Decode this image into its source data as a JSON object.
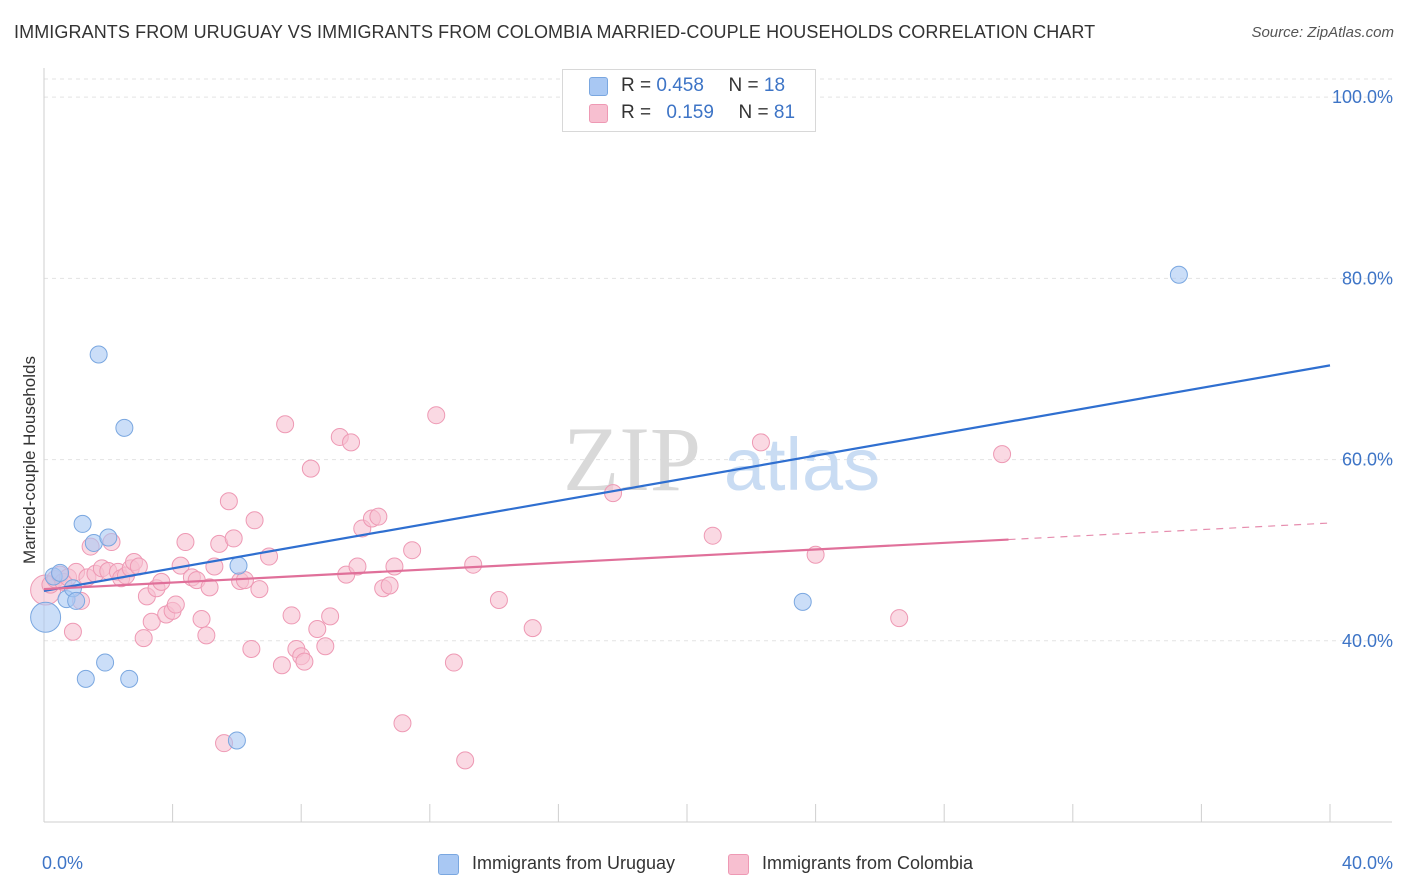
{
  "title": "IMMIGRANTS FROM URUGUAY VS IMMIGRANTS FROM COLOMBIA MARRIED-COUPLE HOUSEHOLDS CORRELATION CHART",
  "source": "Source: ZipAtlas.com",
  "watermark": {
    "zip": "ZIP",
    "atlas": "atlas"
  },
  "legend_top": [
    {
      "r_label": "R =",
      "r_value": "0.458",
      "n_label": "N =",
      "n_value": "18"
    },
    {
      "r_label": "R =",
      "r_value": "0.159",
      "n_label": "N =",
      "n_value": "81"
    }
  ],
  "chart_data": {
    "type": "scatter",
    "title": "IMMIGRANTS FROM URUGUAY VS IMMIGRANTS FROM COLOMBIA MARRIED-COUPLE HOUSEHOLDS CORRELATION CHART",
    "xlabel": "",
    "ylabel": "Married-couple Households",
    "xlim": [
      0,
      40
    ],
    "ylim": [
      20,
      103
    ],
    "x_tick_labels": [
      {
        "value": 0,
        "label": "0.0%"
      },
      {
        "value": 40,
        "label": "40.0%"
      }
    ],
    "y_tick_labels": [
      {
        "value": 40,
        "label": "40.0%"
      },
      {
        "value": 60,
        "label": "60.0%"
      },
      {
        "value": 80,
        "label": "80.0%"
      },
      {
        "value": 100,
        "label": "100.0%"
      }
    ],
    "grid": true,
    "legend_position": "bottom",
    "series": [
      {
        "name": "Immigrants from Uruguay",
        "color": "#a9c8f3",
        "edge_color": "#7aa7e0",
        "trend_color": "#2f6fd0",
        "r": 0.458,
        "n": 18,
        "trend": {
          "x0": 0,
          "y0": 45.5,
          "x1": 40,
          "y1": 70.4,
          "dashed_from": null
        },
        "points": [
          {
            "x": 0.05,
            "y": 42.6,
            "size": "large"
          },
          {
            "x": 0.3,
            "y": 47.1
          },
          {
            "x": 0.5,
            "y": 47.5
          },
          {
            "x": 0.7,
            "y": 44.6
          },
          {
            "x": 0.9,
            "y": 45.8
          },
          {
            "x": 1.0,
            "y": 44.4
          },
          {
            "x": 1.2,
            "y": 52.9
          },
          {
            "x": 1.3,
            "y": 35.8
          },
          {
            "x": 1.55,
            "y": 50.8
          },
          {
            "x": 1.7,
            "y": 71.6
          },
          {
            "x": 1.9,
            "y": 37.6
          },
          {
            "x": 2.0,
            "y": 51.4
          },
          {
            "x": 2.5,
            "y": 63.5
          },
          {
            "x": 2.65,
            "y": 35.8
          },
          {
            "x": 6.0,
            "y": 29.0
          },
          {
            "x": 6.05,
            "y": 48.3
          },
          {
            "x": 23.6,
            "y": 44.3
          },
          {
            "x": 35.3,
            "y": 80.4
          }
        ]
      },
      {
        "name": "Immigrants from Colombia",
        "color": "#f7bfd0",
        "edge_color": "#ee99b4",
        "trend_color": "#e0709a",
        "r": 0.159,
        "n": 81,
        "trend": {
          "x0": 0,
          "y0": 45.7,
          "x1": 40,
          "y1": 53.0,
          "dashed_from": 30.0
        },
        "points": [
          {
            "x": 0.05,
            "y": 45.6,
            "size": "large"
          },
          {
            "x": 0.2,
            "y": 46.2
          },
          {
            "x": 0.35,
            "y": 46.8
          },
          {
            "x": 0.5,
            "y": 47.3
          },
          {
            "x": 0.6,
            "y": 46.5
          },
          {
            "x": 0.75,
            "y": 47.0
          },
          {
            "x": 0.9,
            "y": 41.0
          },
          {
            "x": 1.0,
            "y": 47.6
          },
          {
            "x": 1.15,
            "y": 44.4
          },
          {
            "x": 1.35,
            "y": 47.0
          },
          {
            "x": 1.45,
            "y": 50.4
          },
          {
            "x": 1.6,
            "y": 47.4
          },
          {
            "x": 1.8,
            "y": 48.0
          },
          {
            "x": 2.0,
            "y": 47.7
          },
          {
            "x": 2.1,
            "y": 50.9
          },
          {
            "x": 2.3,
            "y": 47.6
          },
          {
            "x": 2.4,
            "y": 46.9
          },
          {
            "x": 2.55,
            "y": 47.2
          },
          {
            "x": 2.7,
            "y": 48.0
          },
          {
            "x": 2.8,
            "y": 48.7
          },
          {
            "x": 2.95,
            "y": 48.2
          },
          {
            "x": 3.1,
            "y": 40.3
          },
          {
            "x": 3.2,
            "y": 44.9
          },
          {
            "x": 3.35,
            "y": 42.1
          },
          {
            "x": 3.5,
            "y": 45.8
          },
          {
            "x": 3.65,
            "y": 46.5
          },
          {
            "x": 3.8,
            "y": 42.9
          },
          {
            "x": 4.0,
            "y": 43.3
          },
          {
            "x": 4.1,
            "y": 44.0
          },
          {
            "x": 4.25,
            "y": 48.3
          },
          {
            "x": 4.4,
            "y": 50.9
          },
          {
            "x": 4.6,
            "y": 47.0
          },
          {
            "x": 4.75,
            "y": 46.7
          },
          {
            "x": 4.9,
            "y": 42.4
          },
          {
            "x": 5.05,
            "y": 40.6
          },
          {
            "x": 5.15,
            "y": 45.9
          },
          {
            "x": 5.3,
            "y": 48.2
          },
          {
            "x": 5.45,
            "y": 50.7
          },
          {
            "x": 5.6,
            "y": 28.7
          },
          {
            "x": 5.75,
            "y": 55.4
          },
          {
            "x": 5.9,
            "y": 51.3
          },
          {
            "x": 6.1,
            "y": 46.6
          },
          {
            "x": 6.25,
            "y": 46.7
          },
          {
            "x": 6.45,
            "y": 39.1
          },
          {
            "x": 6.55,
            "y": 53.3
          },
          {
            "x": 6.7,
            "y": 45.7
          },
          {
            "x": 7.0,
            "y": 49.3
          },
          {
            "x": 7.4,
            "y": 37.3
          },
          {
            "x": 7.5,
            "y": 63.9
          },
          {
            "x": 7.7,
            "y": 42.8
          },
          {
            "x": 7.85,
            "y": 39.1
          },
          {
            "x": 8.0,
            "y": 38.3
          },
          {
            "x": 8.1,
            "y": 37.7
          },
          {
            "x": 8.3,
            "y": 59.0
          },
          {
            "x": 8.5,
            "y": 41.3
          },
          {
            "x": 8.75,
            "y": 39.4
          },
          {
            "x": 8.9,
            "y": 42.7
          },
          {
            "x": 9.2,
            "y": 62.5
          },
          {
            "x": 9.4,
            "y": 47.3
          },
          {
            "x": 9.55,
            "y": 61.9
          },
          {
            "x": 9.75,
            "y": 48.2
          },
          {
            "x": 9.9,
            "y": 52.4
          },
          {
            "x": 10.2,
            "y": 53.5
          },
          {
            "x": 10.4,
            "y": 53.7
          },
          {
            "x": 10.55,
            "y": 45.8
          },
          {
            "x": 10.75,
            "y": 46.1
          },
          {
            "x": 10.9,
            "y": 48.2
          },
          {
            "x": 11.15,
            "y": 30.9
          },
          {
            "x": 11.45,
            "y": 50.0
          },
          {
            "x": 12.2,
            "y": 64.9
          },
          {
            "x": 12.75,
            "y": 37.6
          },
          {
            "x": 13.1,
            "y": 26.8
          },
          {
            "x": 13.35,
            "y": 48.4
          },
          {
            "x": 14.15,
            "y": 44.5
          },
          {
            "x": 15.2,
            "y": 41.4
          },
          {
            "x": 17.7,
            "y": 56.3
          },
          {
            "x": 20.8,
            "y": 51.6
          },
          {
            "x": 22.3,
            "y": 61.9
          },
          {
            "x": 24.0,
            "y": 49.5
          },
          {
            "x": 26.6,
            "y": 42.5
          },
          {
            "x": 29.8,
            "y": 60.6
          }
        ]
      }
    ]
  }
}
